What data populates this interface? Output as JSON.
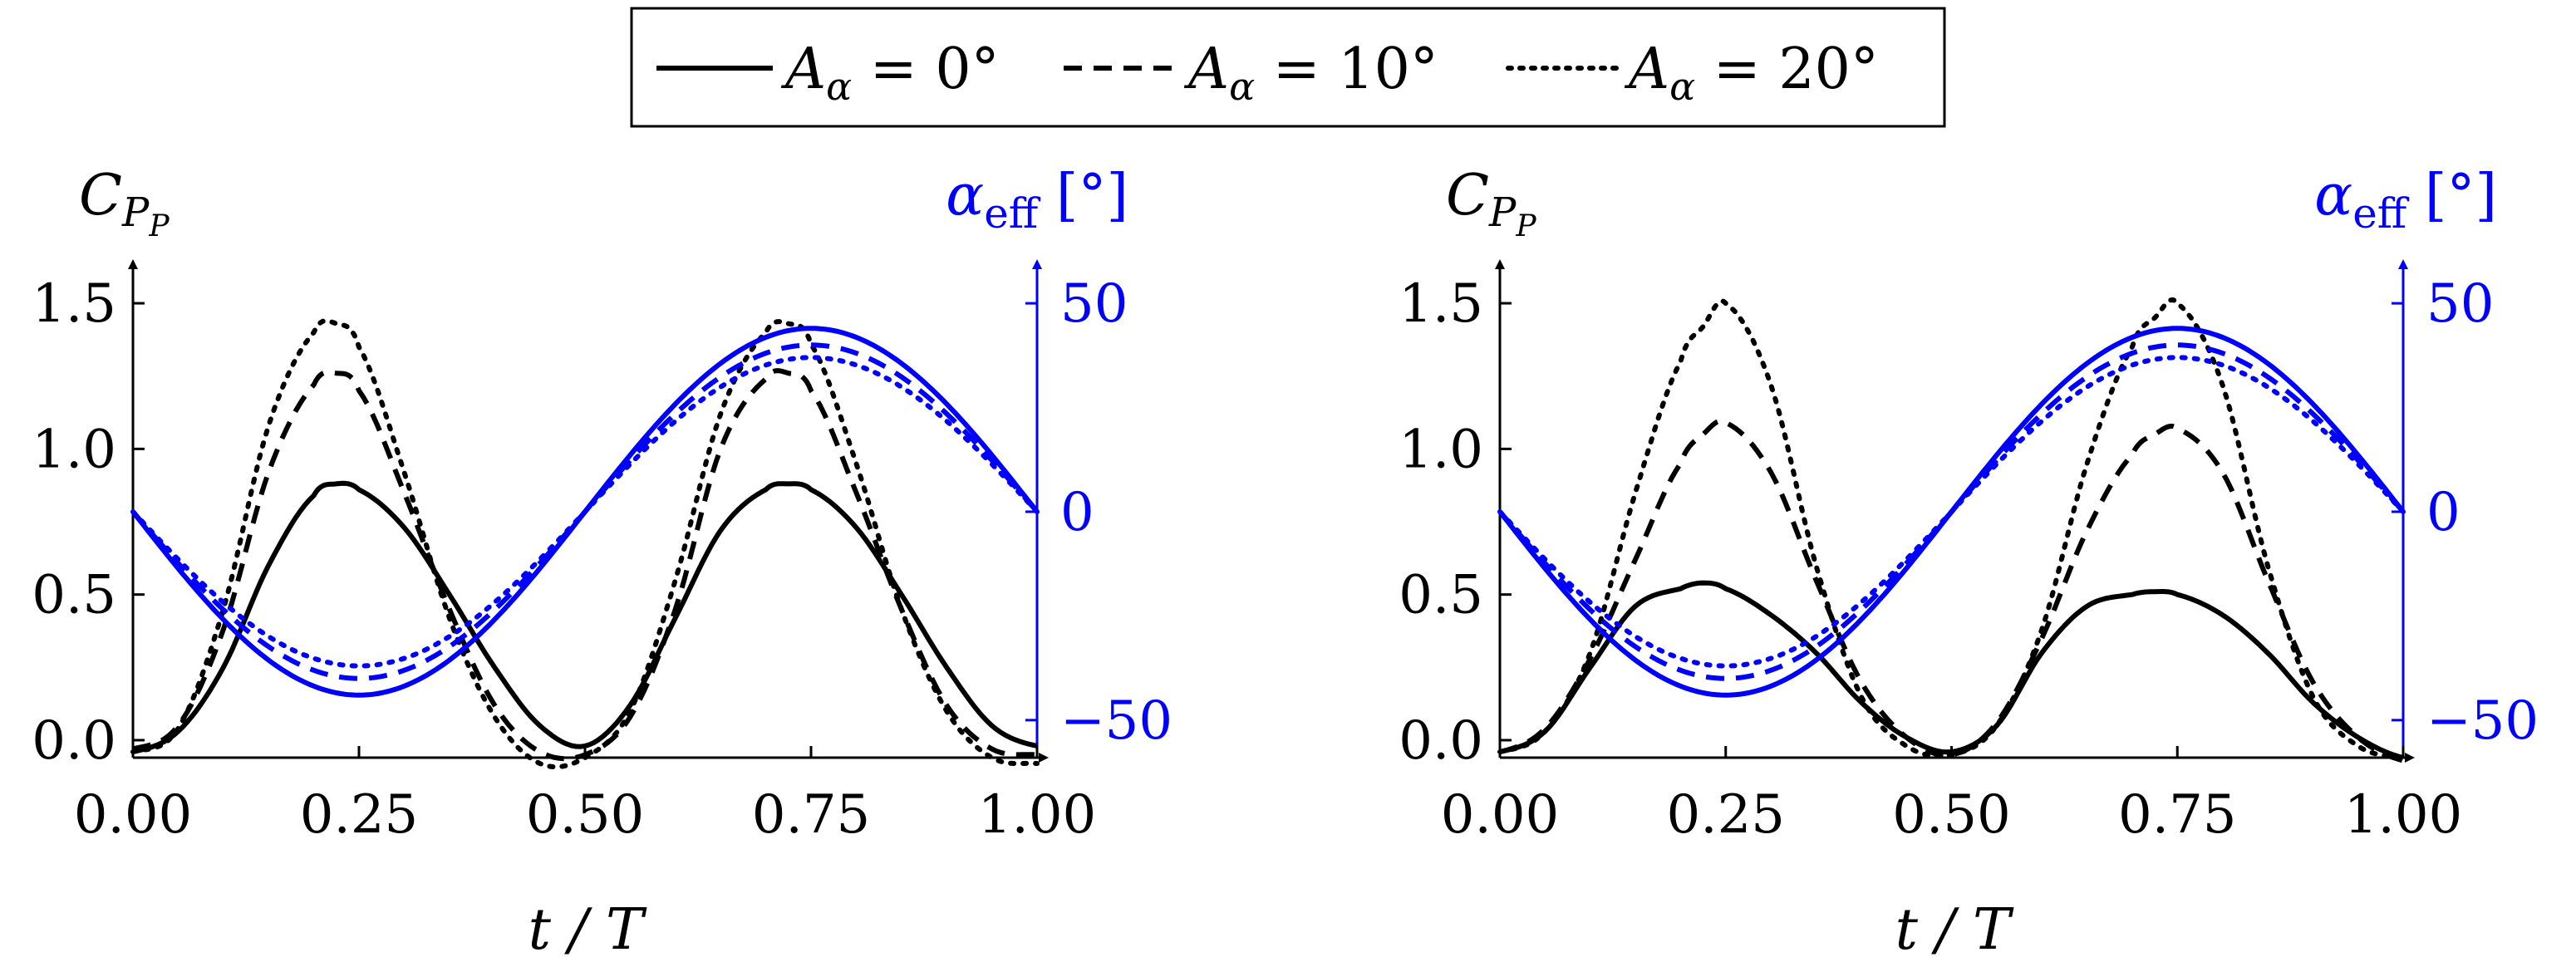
{
  "legend": {
    "entries": [
      {
        "symbol": "A",
        "sub": "α",
        "text": " = 0°",
        "dash": "solid"
      },
      {
        "symbol": "A",
        "sub": "α",
        "text": " = 10°",
        "dash": "dashed"
      },
      {
        "symbol": "A",
        "sub": "α",
        "text": " = 20°",
        "dash": "dotted"
      }
    ]
  },
  "colors": {
    "cp": "#000000",
    "alpha": "#0000ff"
  },
  "chart_data": [
    {
      "type": "line",
      "xlabel": "t / T",
      "ylabel_left": {
        "main": "C",
        "sub": "P",
        "subsub": "P"
      },
      "ylabel_right": {
        "main": "α",
        "sub": "eff",
        "unit": " [°]"
      },
      "x_ticks": [
        "0.00",
        "0.25",
        "0.50",
        "0.75",
        "1.00"
      ],
      "x_tick_values": [
        0,
        0.25,
        0.5,
        0.75,
        1.0
      ],
      "y_ticks": [
        "0.0",
        "0.5",
        "1.0",
        "1.5"
      ],
      "y_tick_values": [
        0,
        0.5,
        1.0,
        1.5
      ],
      "y2_ticks": [
        "−50",
        "0",
        "50"
      ],
      "y2_tick_values": [
        -50,
        0,
        50
      ],
      "xlim": [
        0,
        1
      ],
      "ylim": [
        -0.06,
        1.6
      ],
      "y2lim": [
        -59,
        57
      ],
      "series": [
        {
          "name": "CP_P Aα=0°",
          "axis": "left",
          "dash": "solid",
          "x": [
            0,
            0.05,
            0.1,
            0.15,
            0.2,
            0.225,
            0.25,
            0.3,
            0.35,
            0.4,
            0.45,
            0.5,
            0.55,
            0.6,
            0.65,
            0.7,
            0.725,
            0.75,
            0.8,
            0.85,
            0.9,
            0.95,
            1.0
          ],
          "y": [
            -0.04,
            0.03,
            0.25,
            0.6,
            0.84,
            0.88,
            0.86,
            0.73,
            0.5,
            0.25,
            0.05,
            -0.02,
            0.12,
            0.42,
            0.72,
            0.86,
            0.88,
            0.86,
            0.73,
            0.5,
            0.25,
            0.05,
            -0.02
          ]
        },
        {
          "name": "CP_P Aα=10°",
          "axis": "left",
          "dash": "dashed",
          "x": [
            0,
            0.05,
            0.1,
            0.15,
            0.2,
            0.225,
            0.25,
            0.3,
            0.35,
            0.4,
            0.45,
            0.5,
            0.55,
            0.6,
            0.65,
            0.7,
            0.725,
            0.75,
            0.8,
            0.85,
            0.9,
            0.95,
            1.0
          ],
          "y": [
            -0.03,
            0.05,
            0.38,
            0.92,
            1.22,
            1.26,
            1.2,
            0.85,
            0.45,
            0.12,
            -0.04,
            -0.05,
            0.08,
            0.45,
            1.0,
            1.24,
            1.26,
            1.2,
            0.85,
            0.45,
            0.12,
            -0.03,
            -0.05
          ]
        },
        {
          "name": "CP_P Aα=20°",
          "axis": "left",
          "dash": "dotted",
          "x": [
            0,
            0.05,
            0.1,
            0.15,
            0.2,
            0.225,
            0.25,
            0.3,
            0.35,
            0.4,
            0.45,
            0.5,
            0.55,
            0.6,
            0.65,
            0.7,
            0.725,
            0.75,
            0.8,
            0.85,
            0.9,
            0.95,
            1.0
          ],
          "y": [
            -0.04,
            0.04,
            0.45,
            1.08,
            1.4,
            1.43,
            1.35,
            0.92,
            0.42,
            0.08,
            -0.08,
            -0.06,
            0.1,
            0.55,
            1.12,
            1.4,
            1.43,
            1.36,
            0.95,
            0.45,
            0.1,
            -0.06,
            -0.08
          ]
        },
        {
          "name": "αeff Aα=0°",
          "axis": "right",
          "dash": "solid",
          "fn": {
            "type": "sin",
            "amp": 44,
            "phase": 0.5
          }
        },
        {
          "name": "αeff Aα=10°",
          "axis": "right",
          "dash": "dashed",
          "fn": {
            "type": "sin",
            "amp": 40,
            "phase": 0.5
          }
        },
        {
          "name": "αeff Aα=20°",
          "axis": "right",
          "dash": "dotted",
          "fn": {
            "type": "sin",
            "amp": 37,
            "phase": 0.5
          }
        }
      ]
    },
    {
      "type": "line",
      "xlabel": "t / T",
      "ylabel_left": {
        "main": "C",
        "sub": "P",
        "subsub": "P"
      },
      "ylabel_right": {
        "main": "α",
        "sub": "eff",
        "unit": " [°]"
      },
      "x_ticks": [
        "0.00",
        "0.25",
        "0.50",
        "0.75",
        "1.00"
      ],
      "x_tick_values": [
        0,
        0.25,
        0.5,
        0.75,
        1.0
      ],
      "y_ticks": [
        "0.0",
        "0.5",
        "1.0",
        "1.5"
      ],
      "y_tick_values": [
        0,
        0.5,
        1.0,
        1.5
      ],
      "y2_ticks": [
        "−50",
        "0",
        "50"
      ],
      "y2_tick_values": [
        -50,
        0,
        50
      ],
      "xlim": [
        0,
        1
      ],
      "ylim": [
        -0.06,
        1.6
      ],
      "y2lim": [
        -59,
        57
      ],
      "series": [
        {
          "name": "CP_P Aα=0°",
          "axis": "left",
          "dash": "solid",
          "x": [
            0,
            0.05,
            0.1,
            0.15,
            0.2,
            0.225,
            0.25,
            0.3,
            0.35,
            0.4,
            0.45,
            0.5,
            0.55,
            0.6,
            0.65,
            0.7,
            0.725,
            0.75,
            0.8,
            0.85,
            0.9,
            0.95,
            1.0
          ],
          "y": [
            -0.04,
            0.03,
            0.25,
            0.46,
            0.52,
            0.54,
            0.52,
            0.43,
            0.3,
            0.13,
            0.01,
            -0.04,
            0.05,
            0.3,
            0.46,
            0.5,
            0.51,
            0.5,
            0.43,
            0.3,
            0.13,
            0.01,
            -0.06
          ]
        },
        {
          "name": "CP_P Aα=10°",
          "axis": "left",
          "dash": "dashed",
          "x": [
            0,
            0.05,
            0.1,
            0.15,
            0.2,
            0.225,
            0.25,
            0.3,
            0.35,
            0.4,
            0.45,
            0.5,
            0.55,
            0.6,
            0.65,
            0.7,
            0.725,
            0.75,
            0.8,
            0.85,
            0.9,
            0.95,
            1.0
          ],
          "y": [
            -0.04,
            0.04,
            0.28,
            0.62,
            0.95,
            1.05,
            1.09,
            0.92,
            0.55,
            0.2,
            0.01,
            -0.05,
            0.06,
            0.35,
            0.72,
            0.98,
            1.05,
            1.07,
            0.92,
            0.55,
            0.2,
            0.01,
            -0.07
          ]
        },
        {
          "name": "CP_P Aα=20°",
          "axis": "left",
          "dash": "dotted",
          "x": [
            0,
            0.05,
            0.1,
            0.15,
            0.2,
            0.225,
            0.25,
            0.3,
            0.35,
            0.4,
            0.45,
            0.5,
            0.55,
            0.6,
            0.65,
            0.7,
            0.725,
            0.75,
            0.8,
            0.85,
            0.9,
            0.95,
            1.0
          ],
          "y": [
            -0.04,
            0.03,
            0.3,
            0.85,
            1.3,
            1.42,
            1.5,
            1.22,
            0.6,
            0.15,
            -0.02,
            -0.05,
            0.05,
            0.38,
            0.95,
            1.35,
            1.45,
            1.5,
            1.22,
            0.6,
            0.15,
            -0.02,
            -0.06
          ]
        },
        {
          "name": "αeff Aα=0°",
          "axis": "right",
          "dash": "solid",
          "fn": {
            "type": "sin",
            "amp": 44,
            "phase": 0.5
          }
        },
        {
          "name": "αeff Aα=10°",
          "axis": "right",
          "dash": "dashed",
          "fn": {
            "type": "sin",
            "amp": 40,
            "phase": 0.5
          }
        },
        {
          "name": "αeff Aα=20°",
          "axis": "right",
          "dash": "dotted",
          "fn": {
            "type": "sin",
            "amp": 37,
            "phase": 0.5
          }
        }
      ]
    }
  ]
}
